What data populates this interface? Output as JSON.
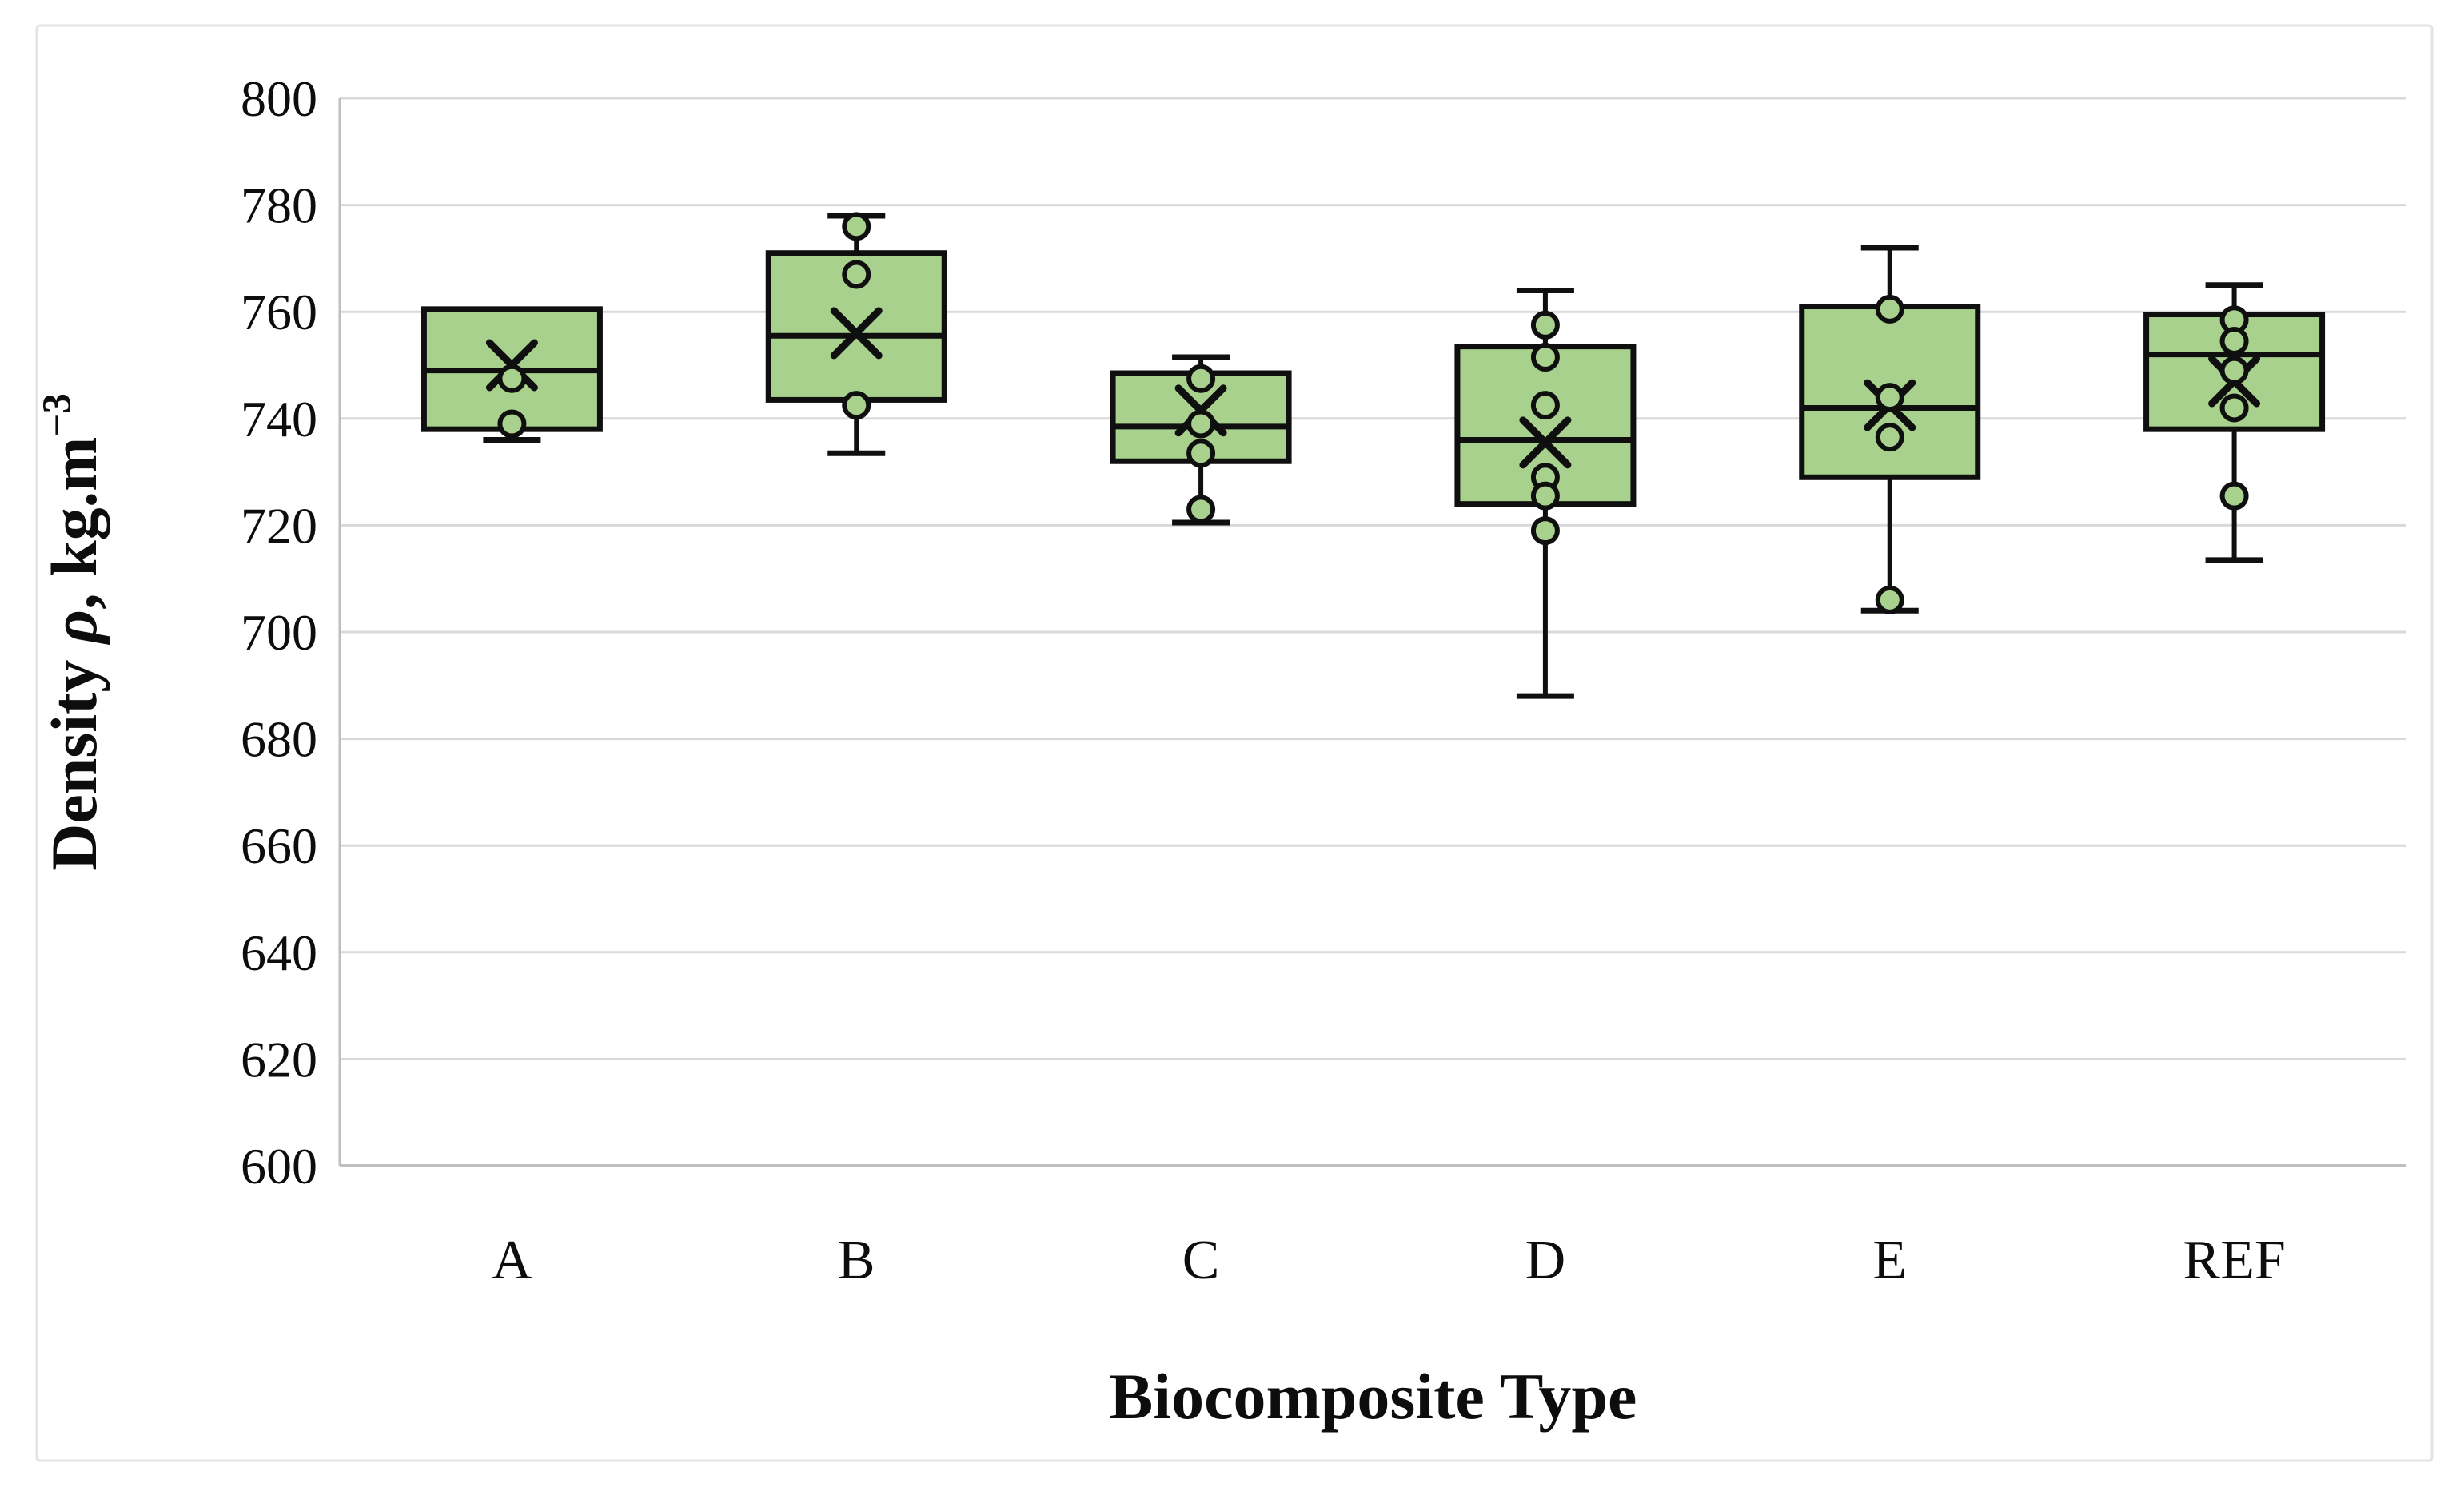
{
  "figure": {
    "background": "#ffffff",
    "border_color": "#e3e3e3"
  },
  "chart_data": {
    "type": "box",
    "title": "",
    "xlabel": "Biocomposite Type",
    "ylabel": "Density ρ, kg.m−3",
    "ylabel_parts": {
      "prefix": "Density ",
      "symbol": "ρ",
      "mid": ", kg.m",
      "sup": "−3"
    },
    "ylim": [
      600,
      800
    ],
    "yticks": [
      600,
      620,
      640,
      660,
      680,
      700,
      720,
      740,
      760,
      780,
      800
    ],
    "grid": true,
    "legend": "none",
    "categories": [
      "A",
      "B",
      "C",
      "D",
      "E",
      "REF"
    ],
    "series": [
      {
        "name": "A",
        "whisker_low": 736,
        "q1": 738,
        "median": 749,
        "q3": 760.5,
        "whisker_high": 760.5,
        "mean": 750,
        "points": [
          747.5,
          739
        ]
      },
      {
        "name": "B",
        "whisker_low": 733.5,
        "q1": 743.5,
        "median": 755.5,
        "q3": 771,
        "whisker_high": 778,
        "mean": 756,
        "points": [
          776,
          767,
          742.5
        ]
      },
      {
        "name": "C",
        "whisker_low": 720.5,
        "q1": 732,
        "median": 738.5,
        "q3": 748.5,
        "whisker_high": 751.5,
        "mean": 741.5,
        "points": [
          747.5,
          739,
          733.5,
          723
        ]
      },
      {
        "name": "D",
        "whisker_low": 688,
        "q1": 724,
        "median": 736,
        "q3": 753.5,
        "whisker_high": 764,
        "mean": 735.5,
        "points": [
          757.5,
          751.5,
          742.5,
          729,
          725.5,
          719
        ]
      },
      {
        "name": "E",
        "whisker_low": 704,
        "q1": 729,
        "median": 742,
        "q3": 761,
        "whisker_high": 772,
        "mean": 742.5,
        "points": [
          760.5,
          744,
          736.5,
          706
        ]
      },
      {
        "name": "REF",
        "whisker_low": 713.5,
        "q1": 738,
        "median": 752,
        "q3": 759.5,
        "whisker_high": 765,
        "mean": 747,
        "points": [
          758.5,
          754.5,
          749,
          742,
          725.5
        ]
      }
    ],
    "colors": {
      "box_fill": "#a9d18e",
      "box_stroke": "#0f0f0f",
      "point_fill": "#a9d18e",
      "point_stroke": "#0f0f0f",
      "mean_marker": "#0f0f0f",
      "gridline": "#d9d9d9",
      "axis_line": "#bfbfbf",
      "text": "#0d0d0d"
    }
  }
}
